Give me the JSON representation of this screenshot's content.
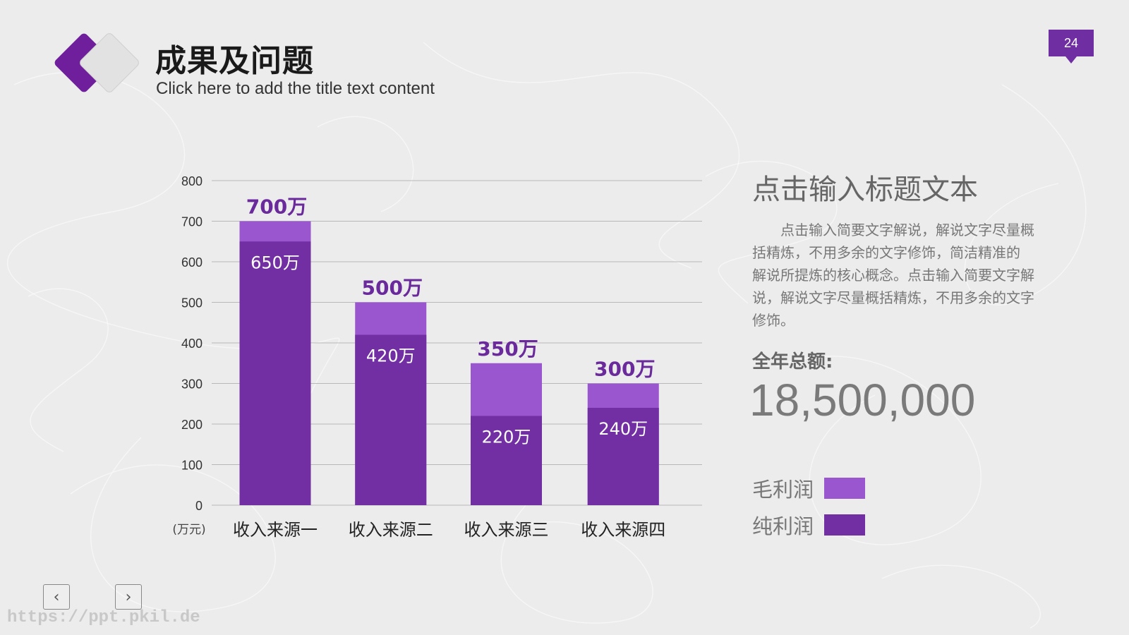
{
  "header": {
    "title": "成果及问题",
    "subtitle": "Click here to add the title text content",
    "page_number": "24"
  },
  "colors": {
    "primary": "#6f2ea1",
    "gross": "#9a56cf",
    "net": "#722fa3",
    "title_text": "#1a1a1a"
  },
  "chart_data": {
    "type": "bar",
    "stacked": "overlay",
    "categories": [
      "收入来源一",
      "收入来源二",
      "收入来源三",
      "收入来源四"
    ],
    "series": [
      {
        "name": "毛利润",
        "values": [
          700,
          500,
          350,
          300
        ],
        "labels": [
          "700万",
          "500万",
          "350万",
          "300万"
        ],
        "color": "#9a56cf"
      },
      {
        "name": "纯利润",
        "values": [
          650,
          420,
          220,
          240
        ],
        "labels": [
          "650万",
          "420万",
          "220万",
          "240万"
        ],
        "color": "#722fa3"
      }
    ],
    "yticks": [
      "0",
      "100",
      "200",
      "300",
      "400",
      "500",
      "600",
      "700",
      "800"
    ],
    "ylim": [
      0,
      800
    ],
    "unit_label": "(万元)",
    "grid": true
  },
  "side": {
    "title": "点击输入标题文本",
    "body": "　　点击输入简要文字解说，解说文字尽量概括精炼，不用多余的文字修饰，简洁精准的 解说所提炼的核心概念。点击输入简要文字解说，解说文字尽量概括精炼，不用多余的文字修饰。",
    "total_label": "全年总额:",
    "total_value": "18,500,000"
  },
  "legend": [
    {
      "label": "毛利润",
      "color": "#9a56cf"
    },
    {
      "label": "纯利润",
      "color": "#722fa3"
    }
  ],
  "nav": {
    "prev_icon": "chevron-left-icon",
    "next_icon": "chevron-right-icon",
    "prev_glyph": "‹",
    "next_glyph": "›"
  },
  "watermark": "https://ppt.pkil.de"
}
